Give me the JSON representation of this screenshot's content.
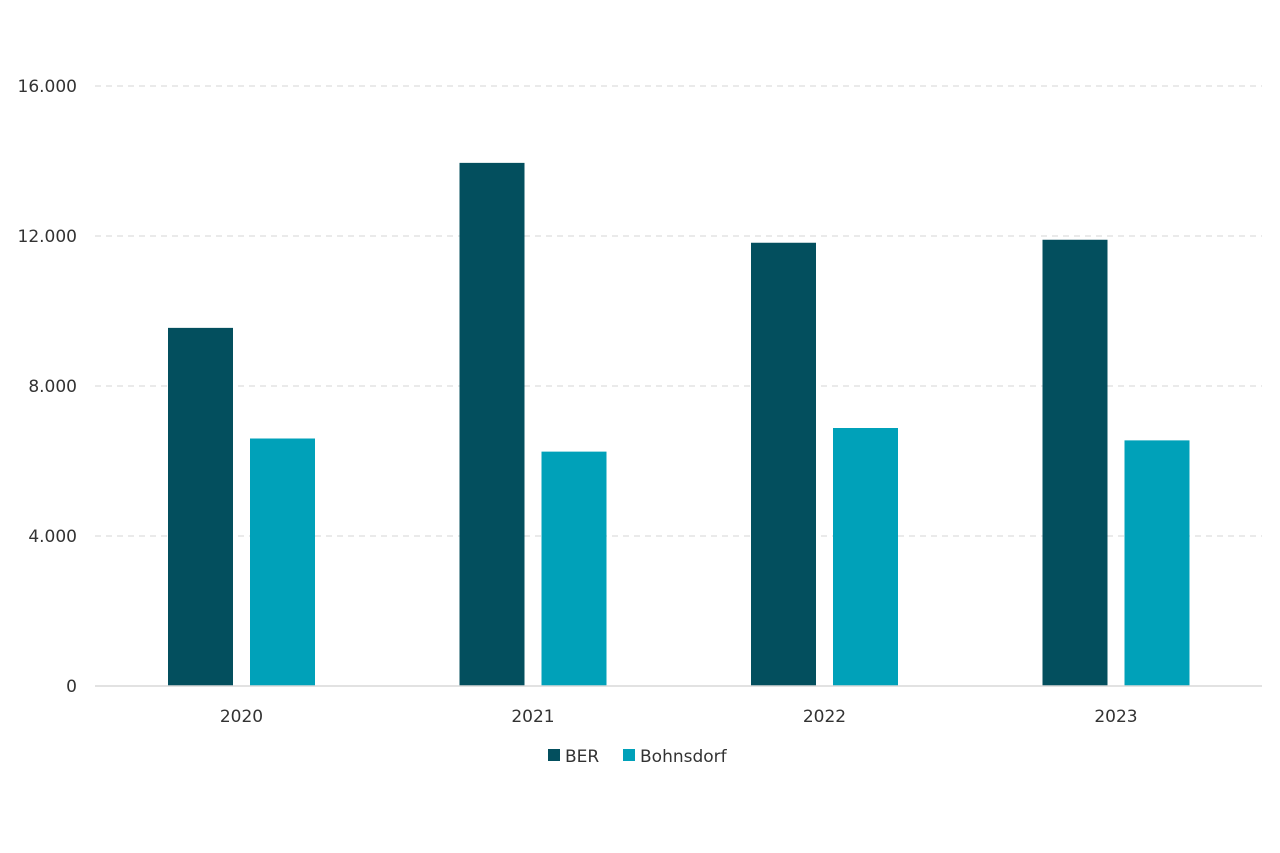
{
  "chart_data": {
    "type": "bar",
    "categories": [
      "2020",
      "2021",
      "2022",
      "2023"
    ],
    "series": [
      {
        "name": "BER",
        "values": [
          9550,
          13950,
          11820,
          11900
        ],
        "color": "#034f5e"
      },
      {
        "name": "Bohnsdorf",
        "values": [
          6600,
          6250,
          6880,
          6550
        ],
        "color": "#00a1b9"
      }
    ],
    "ylim": [
      0,
      16000
    ],
    "yticks": [
      0,
      4000,
      8000,
      12000,
      16000
    ],
    "ytick_labels": [
      "0",
      "4.000",
      "8.000",
      "12.000",
      "16.000"
    ],
    "grid": true,
    "legend": "bottom-center"
  }
}
